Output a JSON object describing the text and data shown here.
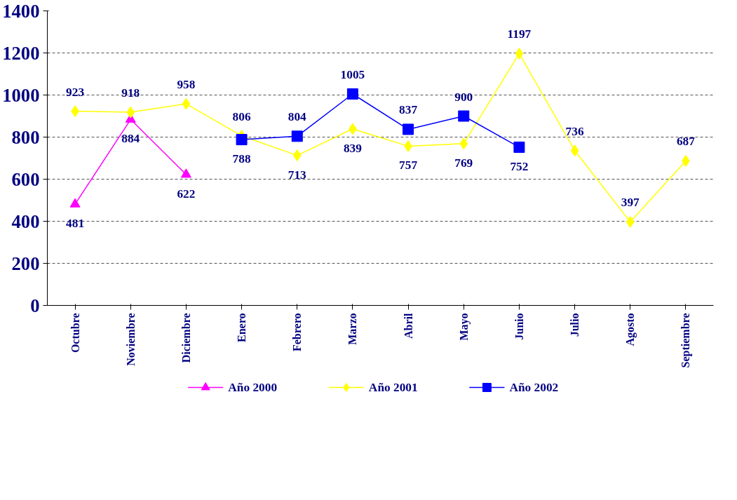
{
  "chart_data": {
    "type": "line",
    "categories": [
      "Octubre",
      "Noviembre",
      "Diciembre",
      "Enero",
      "Febrero",
      "Marzo",
      "Abril",
      "Mayo",
      "Junio",
      "Julio",
      "Agosto",
      "Septiembre"
    ],
    "series": [
      {
        "name": "Año 2000",
        "color": "#ff00ff",
        "marker": "triangle",
        "values": [
          481,
          884,
          622,
          null,
          null,
          null,
          null,
          null,
          null,
          null,
          null,
          null
        ]
      },
      {
        "name": "Año 2001",
        "color": "#ffff00",
        "marker": "diamond",
        "values": [
          923,
          918,
          958,
          806,
          713,
          839,
          757,
          769,
          1197,
          736,
          397,
          687
        ]
      },
      {
        "name": "Año 2002",
        "color": "#0000ff",
        "marker": "square",
        "values": [
          null,
          null,
          null,
          788,
          804,
          1005,
          837,
          900,
          752,
          null,
          null,
          null
        ]
      }
    ],
    "ylim": [
      0,
      1400
    ],
    "yticks": [
      0,
      200,
      400,
      600,
      800,
      1000,
      1200,
      1400
    ],
    "grid": "y",
    "legend": "bottom",
    "data_labels": true,
    "line_style": "solid"
  }
}
